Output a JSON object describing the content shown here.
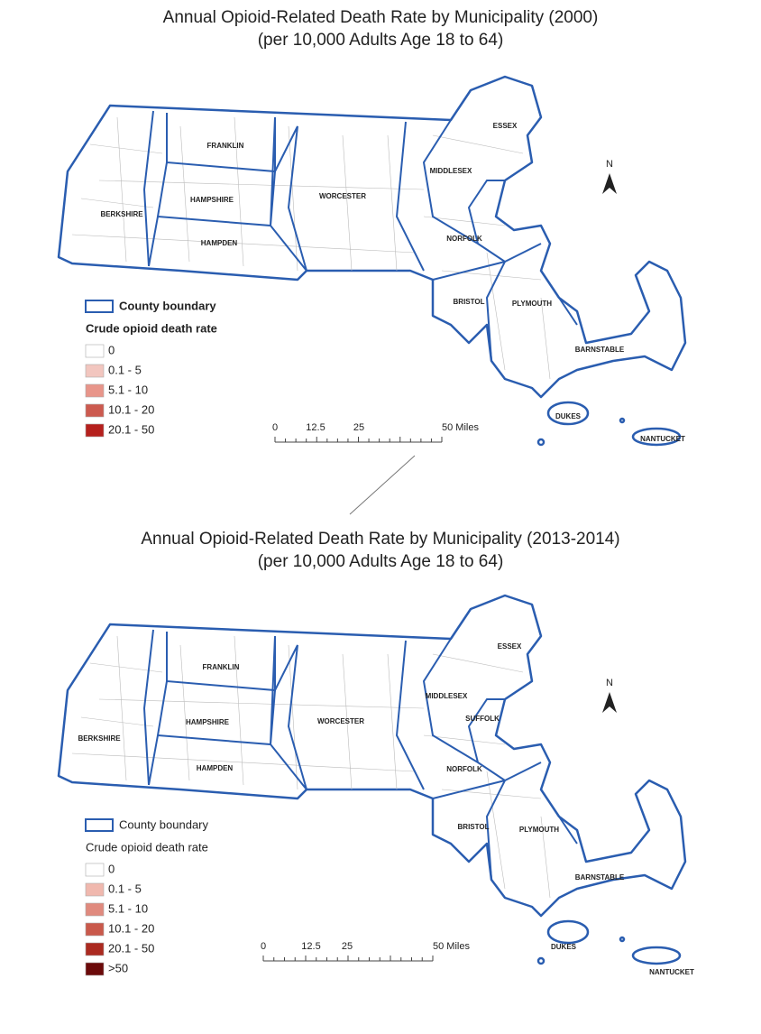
{
  "maps": [
    {
      "title": "Annual Opioid-Related Death Rate by Municipality (2000)",
      "subtitle": "(per 10,000 Adults Age 18 to 64)",
      "counties": [
        "ESSEX",
        "FRANKLIN",
        "MIDDLESEX",
        "HAMPSHIRE",
        "WORCESTER",
        "BERKSHIRE",
        "NORFOLK",
        "HAMPDEN",
        "BRISTOL",
        "PLYMOUTH",
        "BARNSTABLE",
        "DUKES",
        "NANTUCKET"
      ],
      "legend": {
        "boundary": "County boundary",
        "title": "Crude opioid death rate",
        "classes": [
          {
            "label": "0",
            "color": "#ffffff"
          },
          {
            "label": "0.1 - 5",
            "color": "#f2c6bf"
          },
          {
            "label": "5.1 - 10",
            "color": "#e8958a"
          },
          {
            "label": "10.1 - 20",
            "color": "#cc5a4f"
          },
          {
            "label": "20.1 - 50",
            "color": "#b5201d"
          }
        ]
      },
      "scale": [
        "0",
        "12.5",
        "25",
        "50 Miles"
      ],
      "north": "N"
    },
    {
      "title": "Annual Opioid-Related Death Rate by Municipality (2013-2014)",
      "subtitle": "(per 10,000 Adults Age 18 to 64)",
      "counties": [
        "ESSEX",
        "FRANKLIN",
        "MIDDLESEX",
        "SUFFOLK",
        "HAMPSHIRE",
        "WORCESTER",
        "BERKSHIRE",
        "NORFOLK",
        "HAMPDEN",
        "BRISTOL",
        "PLYMOUTH",
        "BARNSTABLE",
        "DUKES",
        "NANTUCKET"
      ],
      "legend": {
        "boundary": "County boundary",
        "title": "Crude opioid death rate",
        "classes": [
          {
            "label": "0",
            "color": "#ffffff"
          },
          {
            "label": "0.1 - 5",
            "color": "#f0b8ae"
          },
          {
            "label": "5.1 - 10",
            "color": "#e08a7e"
          },
          {
            "label": "10.1 - 20",
            "color": "#c9594b"
          },
          {
            "label": "20.1 - 50",
            "color": "#ab2a20"
          },
          {
            "label": ">50",
            "color": "#6b0a0a"
          }
        ]
      },
      "scale": [
        "0",
        "12.5",
        "25",
        "50 Miles"
      ],
      "north": "N"
    }
  ]
}
